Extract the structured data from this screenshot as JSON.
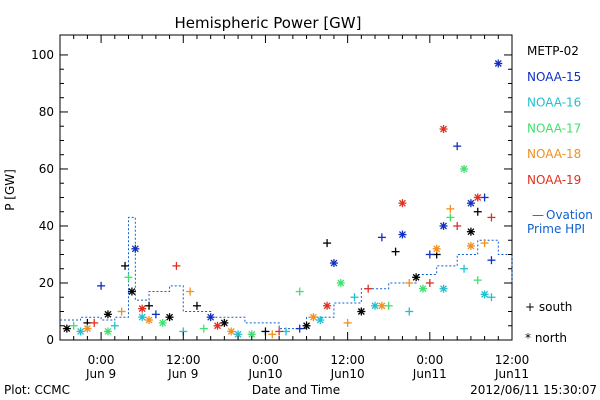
{
  "chart_data": {
    "type": "scatter",
    "title": "Hemispheric Power [GW]",
    "ylabel": "P [GW]",
    "xlabel": "Date and Time",
    "ylim": [
      0,
      107
    ],
    "xlim_hours": [
      0,
      66
    ],
    "y_ticks": [
      "0",
      "20",
      "40",
      "60",
      "80",
      "100"
    ],
    "x_ticks": [
      {
        "time": "0:00",
        "date": "Jun 9"
      },
      {
        "time": "12:00",
        "date": "Jun 9"
      },
      {
        "time": "0:00",
        "date": "Jun10"
      },
      {
        "time": "12:00",
        "date": "Jun10"
      },
      {
        "time": "0:00",
        "date": "Jun11"
      },
      {
        "time": "12:00",
        "date": "Jun11"
      }
    ],
    "legend_position": "right",
    "markers_legend": {
      "south": "+ south",
      "north": "* north"
    },
    "series": [
      {
        "name": "METP-02",
        "color": "#000000",
        "points": [
          [
            1,
            4
          ],
          [
            4,
            6
          ],
          [
            7,
            9
          ],
          [
            9.5,
            26
          ],
          [
            10.5,
            17
          ],
          [
            13,
            12
          ],
          [
            16,
            8
          ],
          [
            20,
            12
          ],
          [
            24,
            6
          ],
          [
            30,
            3
          ],
          [
            36,
            5
          ],
          [
            39,
            34
          ],
          [
            44,
            10
          ],
          [
            49,
            31
          ],
          [
            52,
            22
          ],
          [
            55,
            30
          ],
          [
            60,
            38
          ],
          [
            61,
            45
          ]
        ]
      },
      {
        "name": "NOAA-15",
        "color": "#1030c0",
        "points": [
          [
            6,
            19
          ],
          [
            11,
            32
          ],
          [
            14,
            9
          ],
          [
            22,
            8
          ],
          [
            35,
            4
          ],
          [
            40,
            27
          ],
          [
            47,
            36
          ],
          [
            50,
            37
          ],
          [
            54,
            30
          ],
          [
            56,
            40
          ],
          [
            58,
            68
          ],
          [
            60,
            48
          ],
          [
            62,
            50
          ],
          [
            64,
            97
          ],
          [
            63,
            28
          ]
        ]
      },
      {
        "name": "NOAA-16",
        "color": "#20c0d0",
        "points": [
          [
            3,
            3
          ],
          [
            8,
            5
          ],
          [
            12,
            8
          ],
          [
            18,
            3
          ],
          [
            26,
            2
          ],
          [
            33,
            3
          ],
          [
            38,
            7
          ],
          [
            43,
            15
          ],
          [
            46,
            12
          ],
          [
            51,
            10
          ],
          [
            56,
            18
          ],
          [
            59,
            25
          ],
          [
            62,
            16
          ],
          [
            63,
            15
          ]
        ]
      },
      {
        "name": "NOAA-17",
        "color": "#40e070",
        "points": [
          [
            2,
            5
          ],
          [
            7,
            3
          ],
          [
            10,
            22
          ],
          [
            15,
            6
          ],
          [
            21,
            4
          ],
          [
            28,
            2
          ],
          [
            35,
            17
          ],
          [
            41,
            20
          ],
          [
            48,
            12
          ],
          [
            53,
            18
          ],
          [
            57,
            43
          ],
          [
            59,
            60
          ],
          [
            61,
            21
          ]
        ]
      },
      {
        "name": "NOAA-18",
        "color": "#f09020",
        "points": [
          [
            4,
            4
          ],
          [
            9,
            10
          ],
          [
            13,
            7
          ],
          [
            19,
            17
          ],
          [
            25,
            3
          ],
          [
            31,
            2
          ],
          [
            37,
            8
          ],
          [
            42,
            6
          ],
          [
            47,
            12
          ],
          [
            51,
            20
          ],
          [
            55,
            32
          ],
          [
            57,
            46
          ],
          [
            60,
            33
          ],
          [
            62,
            34
          ]
        ]
      },
      {
        "name": "NOAA-19",
        "color": "#e03020",
        "points": [
          [
            5,
            6
          ],
          [
            12,
            11
          ],
          [
            17,
            26
          ],
          [
            23,
            5
          ],
          [
            32,
            3
          ],
          [
            39,
            12
          ],
          [
            45,
            18
          ],
          [
            50,
            48
          ],
          [
            54,
            20
          ],
          [
            56,
            74
          ],
          [
            58,
            40
          ],
          [
            61,
            50
          ],
          [
            63,
            43
          ]
        ]
      }
    ],
    "ovation_hpi": {
      "name_line1": "Ovation",
      "name_line2": "Prime HPI",
      "legend_symbol": "—",
      "color": "#1060d0",
      "steps": [
        [
          0,
          7
        ],
        [
          3,
          8
        ],
        [
          6,
          7
        ],
        [
          8,
          8
        ],
        [
          10,
          43
        ],
        [
          11,
          14
        ],
        [
          13,
          17
        ],
        [
          16,
          19
        ],
        [
          18,
          10
        ],
        [
          22,
          8
        ],
        [
          27,
          6
        ],
        [
          32,
          4
        ],
        [
          36,
          8
        ],
        [
          40,
          13
        ],
        [
          44,
          18
        ],
        [
          48,
          20
        ],
        [
          52,
          23
        ],
        [
          55,
          26
        ],
        [
          58,
          30
        ],
        [
          61,
          35
        ],
        [
          64,
          30
        ],
        [
          66,
          20
        ]
      ]
    }
  },
  "footer": {
    "plot_credit": "Plot: CCMC",
    "timestamp": "2012/06/11 15:30:07"
  }
}
